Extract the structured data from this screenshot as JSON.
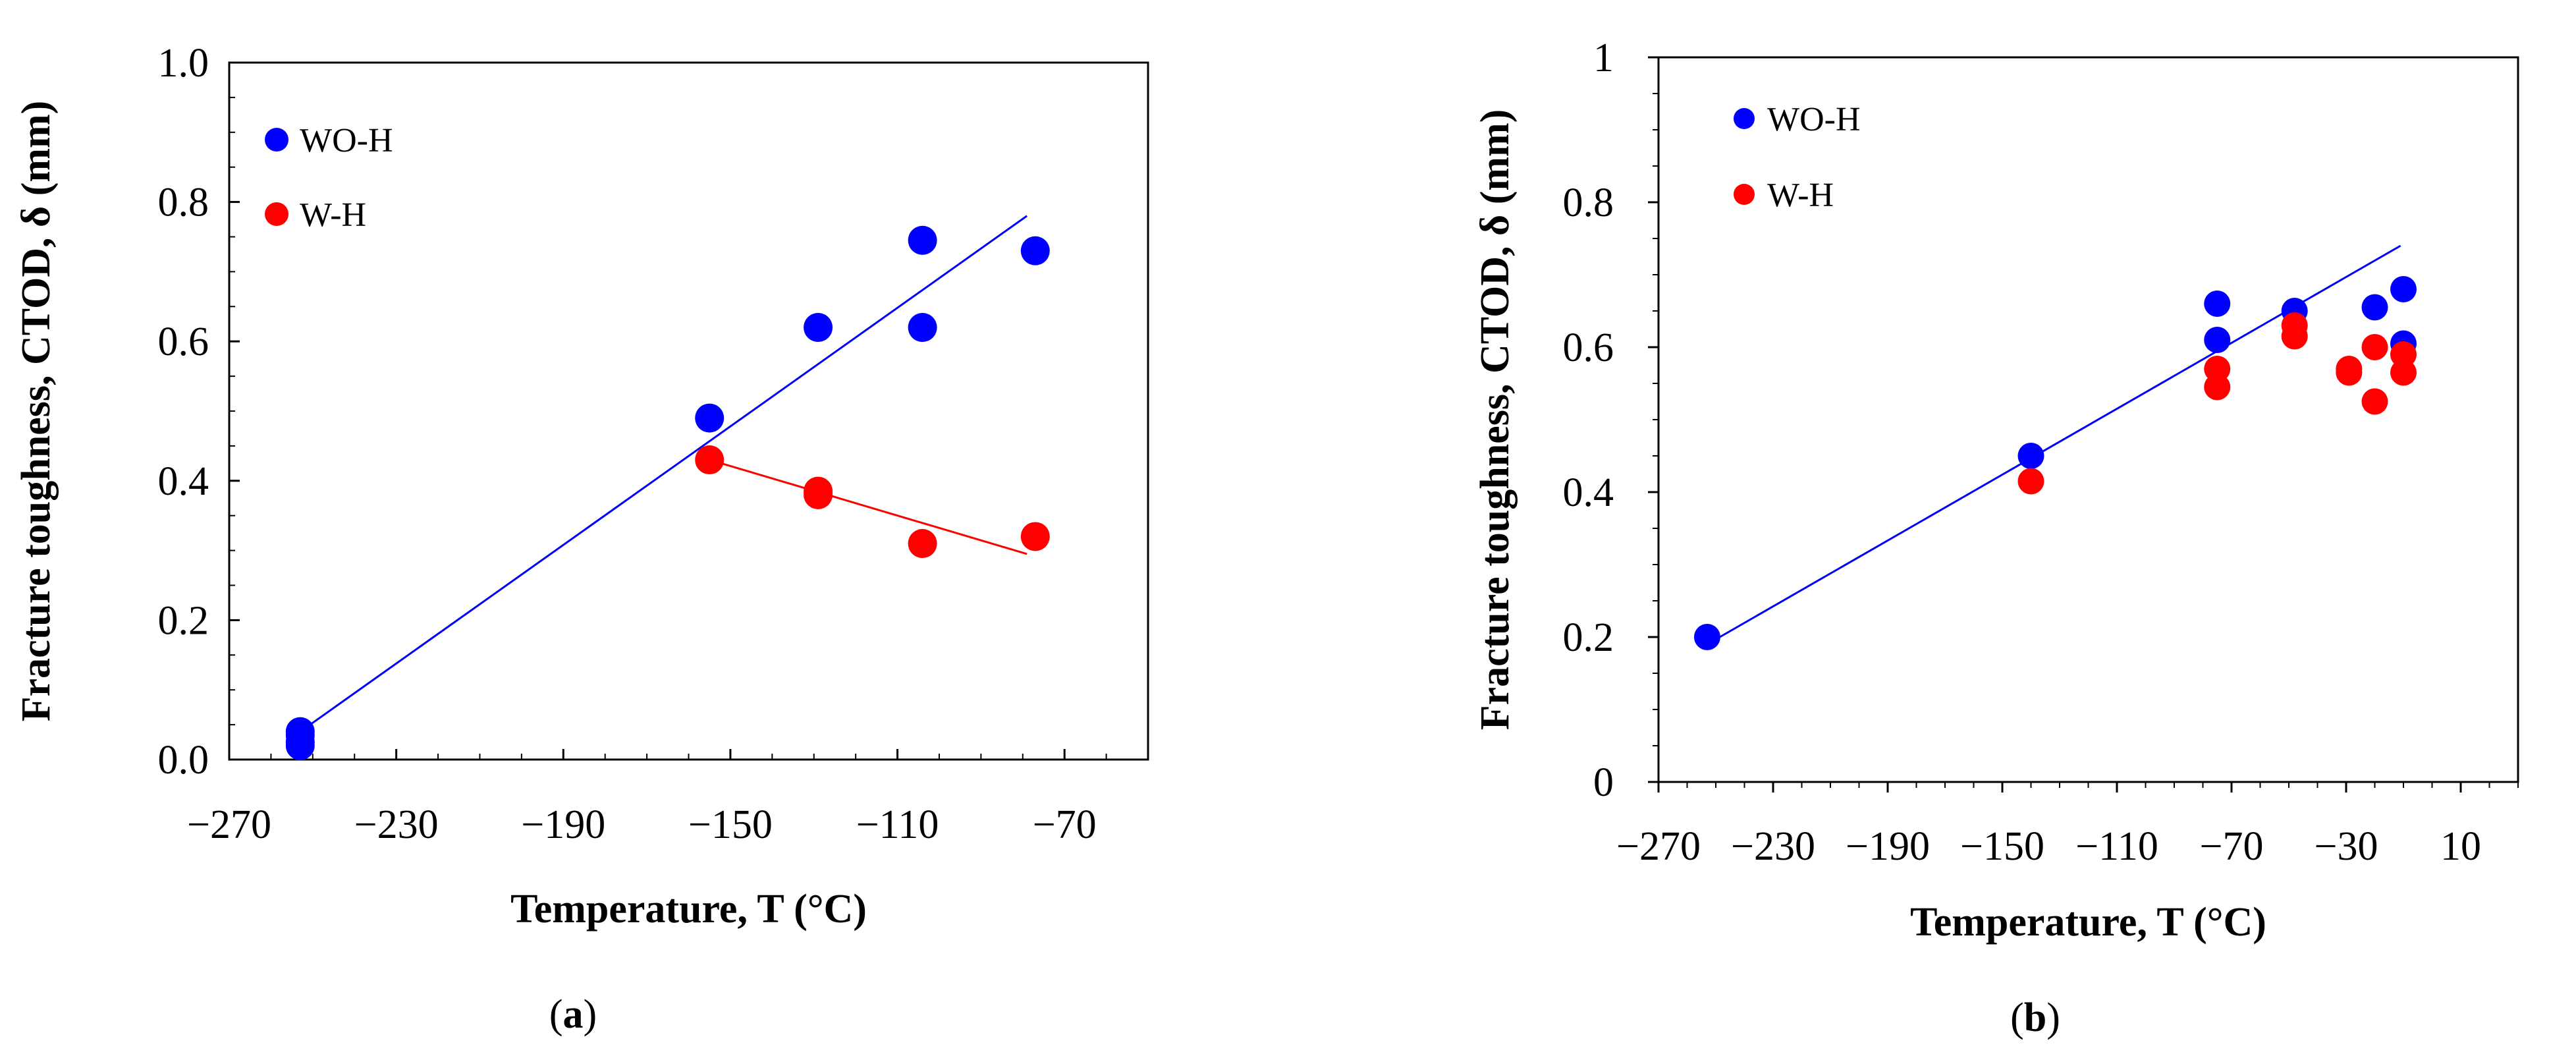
{
  "chart_data": [
    {
      "type": "scatter",
      "panel_label": "(a)",
      "xlabel": "Temperature, T (°C)",
      "ylabel": "Fracture toughness, CTOD, δ (mm)",
      "xlim": [
        -270,
        -50
      ],
      "ylim": [
        0,
        1.0
      ],
      "xticks": [
        -270,
        -230,
        -190,
        -150,
        -110,
        -70
      ],
      "xtick_labels": [
        "−270",
        "−230",
        "−190",
        "−150",
        "−110",
        "−70"
      ],
      "yticks": [
        0,
        0.2,
        0.4,
        0.6,
        0.8,
        1.0
      ],
      "ytick_labels": [
        "0.0",
        "0.2",
        "0.4",
        "0.6",
        "0.8",
        "1.0"
      ],
      "legend_position": "top-left",
      "series": [
        {
          "name": "WO-H",
          "color": "#0000ff",
          "points": [
            [
              -253,
              0.04
            ],
            [
              -253,
              0.035
            ],
            [
              -253,
              0.025
            ],
            [
              -253,
              0.02
            ],
            [
              -155,
              0.49
            ],
            [
              -129,
              0.62
            ],
            [
              -104,
              0.745
            ],
            [
              -104,
              0.62
            ],
            [
              -77,
              0.73
            ]
          ],
          "fit": [
            [
              -253,
              0.04
            ],
            [
              -79,
              0.78
            ]
          ]
        },
        {
          "name": "W-H",
          "color": "#ff0000",
          "points": [
            [
              -155,
              0.43
            ],
            [
              -129,
              0.385
            ],
            [
              -129,
              0.38
            ],
            [
              -104,
              0.31
            ],
            [
              -77,
              0.32
            ]
          ],
          "fit": [
            [
              -155,
              0.43
            ],
            [
              -79,
              0.295
            ]
          ]
        }
      ]
    },
    {
      "type": "scatter",
      "panel_label": "(b)",
      "xlabel": "Temperature, T (°C)",
      "ylabel": "Fracture toughness, CTOD, δ (mm)",
      "xlim": [
        -270,
        30
      ],
      "ylim": [
        0,
        1
      ],
      "xticks": [
        -270,
        -230,
        -190,
        -150,
        -110,
        -70,
        -30,
        10
      ],
      "xtick_labels": [
        "−270",
        "−230",
        "−190",
        "−150",
        "−110",
        "−70",
        "−30",
        "10"
      ],
      "yticks": [
        0,
        0.2,
        0.4,
        0.6,
        0.8,
        1
      ],
      "ytick_labels": [
        "0",
        "0.2",
        "0.4",
        "0.6",
        "0.8",
        "1"
      ],
      "legend_position": "top-left",
      "series": [
        {
          "name": "WO-H",
          "color": "#0000ff",
          "points": [
            [
              -253,
              0.2
            ],
            [
              -140,
              0.45
            ],
            [
              -75,
              0.66
            ],
            [
              -75,
              0.61
            ],
            [
              -48,
              0.65
            ],
            [
              -20,
              0.655
            ],
            [
              -10,
              0.68
            ],
            [
              -10,
              0.605
            ]
          ],
          "fit": [
            [
              -253,
              0.19
            ],
            [
              -11,
              0.74
            ]
          ]
        },
        {
          "name": "W-H",
          "color": "#ff0000",
          "points": [
            [
              -140,
              0.415
            ],
            [
              -75,
              0.57
            ],
            [
              -75,
              0.545
            ],
            [
              -48,
              0.63
            ],
            [
              -48,
              0.615
            ],
            [
              -29,
              0.57
            ],
            [
              -29,
              0.565
            ],
            [
              -20,
              0.6
            ],
            [
              -20,
              0.525
            ],
            [
              -10,
              0.59
            ],
            [
              -10,
              0.565
            ]
          ]
        }
      ]
    }
  ]
}
